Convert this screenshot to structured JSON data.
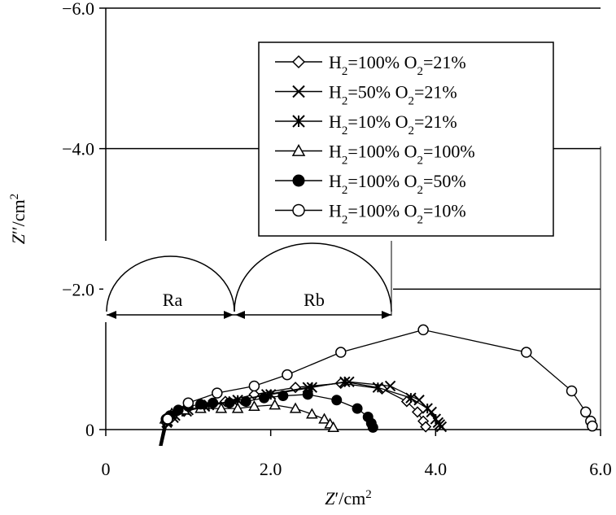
{
  "chart_data": {
    "type": "scatter",
    "title": "",
    "xlabel": "Z′/cm2",
    "ylabel": "Z′′/cm2",
    "xlim": [
      0,
      6
    ],
    "ylim": [
      0,
      -6
    ],
    "x_ticks": [
      "0",
      "2.0",
      "4.0",
      "6.0"
    ],
    "y_ticks": [
      "0",
      "−2.0",
      "−4.0",
      "−6.0"
    ],
    "legend_position": "top-right",
    "grid": "horizontal",
    "series": [
      {
        "name": "H2=100% O2=21%",
        "marker": "diamond-open",
        "x": [
          0.73,
          0.8,
          0.95,
          1.15,
          1.45,
          1.8,
          2.3,
          2.85,
          3.35,
          3.65,
          3.78,
          3.85,
          3.88
        ],
        "y": [
          -0.1,
          -0.17,
          -0.26,
          -0.33,
          -0.4,
          -0.5,
          -0.6,
          -0.66,
          -0.58,
          -0.4,
          -0.25,
          -0.12,
          -0.04
        ]
      },
      {
        "name": "H2=50% O2=21%",
        "marker": "x",
        "x": [
          0.74,
          0.82,
          0.98,
          1.2,
          1.55,
          1.95,
          2.45,
          2.95,
          3.45,
          3.8,
          3.95,
          4.03,
          4.07
        ],
        "y": [
          -0.1,
          -0.17,
          -0.26,
          -0.33,
          -0.4,
          -0.5,
          -0.6,
          -0.68,
          -0.62,
          -0.42,
          -0.25,
          -0.1,
          -0.04
        ]
      },
      {
        "name": "H2=10% O2=21%",
        "marker": "asterisk",
        "x": [
          0.75,
          0.84,
          1.0,
          1.25,
          1.6,
          2.0,
          2.5,
          2.9,
          3.3,
          3.7,
          3.9,
          4.0,
          4.05
        ],
        "y": [
          -0.12,
          -0.2,
          -0.28,
          -0.35,
          -0.42,
          -0.5,
          -0.6,
          -0.68,
          -0.6,
          -0.45,
          -0.3,
          -0.15,
          -0.07
        ]
      },
      {
        "name": "H2=100% O2=100%",
        "marker": "triangle-open",
        "x": [
          0.72,
          0.8,
          0.95,
          1.15,
          1.4,
          1.6,
          1.8,
          2.05,
          2.3,
          2.5,
          2.65,
          2.72,
          2.76
        ],
        "y": [
          -0.15,
          -0.23,
          -0.28,
          -0.3,
          -0.3,
          -0.3,
          -0.33,
          -0.35,
          -0.3,
          -0.22,
          -0.15,
          -0.08,
          -0.03
        ]
      },
      {
        "name": "H2=100% O2=50%",
        "marker": "circle-filled",
        "x": [
          0.73,
          0.78,
          0.88,
          1.0,
          1.15,
          1.3,
          1.5,
          1.7,
          1.92,
          2.15,
          2.45,
          2.8,
          3.05,
          3.18,
          3.22,
          3.24
        ],
        "y": [
          -0.15,
          -0.2,
          -0.28,
          -0.33,
          -0.36,
          -0.38,
          -0.38,
          -0.4,
          -0.45,
          -0.48,
          -0.5,
          -0.42,
          -0.3,
          -0.18,
          -0.09,
          -0.03
        ]
      },
      {
        "name": "H2=100% O2=10%",
        "marker": "circle-open",
        "x": [
          0.75,
          1.0,
          1.35,
          1.8,
          2.2,
          2.85,
          3.85,
          5.1,
          5.65,
          5.82,
          5.88,
          5.9
        ],
        "y": [
          -0.15,
          -0.38,
          -0.52,
          -0.62,
          -0.78,
          -1.1,
          -1.42,
          -1.1,
          -0.55,
          -0.25,
          -0.12,
          -0.05
        ]
      }
    ],
    "annotations": [
      "Ra",
      "Rb"
    ]
  }
}
